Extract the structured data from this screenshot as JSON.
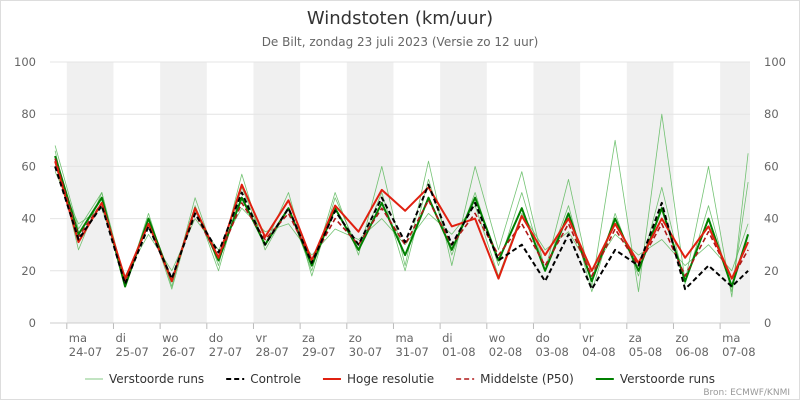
{
  "chart_data": {
    "type": "line",
    "title": "Windstoten (km/uur)",
    "subtitle": "De Bilt, zondag 23 juli 2023 (Versie zo 12 uur)",
    "source": "Bron: ECMWF/KNMI",
    "x": [
      -0.25,
      0.25,
      0.75,
      1.25,
      1.75,
      2.25,
      2.75,
      3.25,
      3.75,
      4.25,
      4.75,
      5.25,
      5.75,
      6.25,
      6.75,
      7.25,
      7.75,
      8.25,
      8.75,
      9.25,
      9.75,
      10.25,
      10.75,
      11.25,
      11.75,
      12.25,
      12.75,
      13.25,
      13.75,
      14.25,
      14.6
    ],
    "xlim": [
      -0.36,
      14.64
    ],
    "xticks": [
      {
        "value": 0,
        "label": "ma",
        "date": "24-07"
      },
      {
        "value": 1,
        "label": "di",
        "date": "25-07"
      },
      {
        "value": 2,
        "label": "wo",
        "date": "26-07"
      },
      {
        "value": 3,
        "label": "do",
        "date": "27-07"
      },
      {
        "value": 4,
        "label": "vr",
        "date": "28-07"
      },
      {
        "value": 5,
        "label": "za",
        "date": "29-07"
      },
      {
        "value": 6,
        "label": "zo",
        "date": "30-07"
      },
      {
        "value": 7,
        "label": "ma",
        "date": "31-07"
      },
      {
        "value": 8,
        "label": "di",
        "date": "01-08"
      },
      {
        "value": 9,
        "label": "wo",
        "date": "02-08"
      },
      {
        "value": 10,
        "label": "do",
        "date": "03-08"
      },
      {
        "value": 11,
        "label": "vr",
        "date": "04-08"
      },
      {
        "value": 12,
        "label": "za",
        "date": "05-08"
      },
      {
        "value": 13,
        "label": "zo",
        "date": "06-08"
      },
      {
        "value": 14,
        "label": "ma",
        "date": "07-08"
      }
    ],
    "ylim": [
      0,
      100
    ],
    "yticks": [
      0,
      20,
      40,
      60,
      80,
      100
    ],
    "grid": true,
    "legend": "bottom",
    "series": [
      {
        "name": "Verstoorde runs",
        "color": "#5cb85c",
        "width": 0.8,
        "runs": [
          [
            68,
            36,
            50,
            14,
            42,
            14,
            48,
            22,
            57,
            28,
            44,
            20,
            50,
            26,
            60,
            22,
            62,
            22,
            60,
            28,
            58,
            20,
            55,
            14,
            70,
            12,
            80,
            16,
            60,
            10,
            65
          ],
          [
            58,
            38,
            44,
            18,
            34,
            20,
            40,
            28,
            44,
            35,
            38,
            26,
            36,
            32,
            40,
            30,
            42,
            34,
            45,
            18,
            42,
            28,
            35,
            20,
            34,
            26,
            32,
            22,
            30,
            20,
            38
          ],
          [
            66,
            28,
            50,
            16,
            40,
            13,
            45,
            20,
            52,
            30,
            50,
            18,
            48,
            28,
            50,
            20,
            55,
            26,
            50,
            22,
            50,
            20,
            45,
            12,
            42,
            18,
            52,
            15,
            45,
            12,
            54
          ]
        ]
      },
      {
        "name": "Controle",
        "color": "#000000",
        "width": 2,
        "dash": true,
        "values": [
          60,
          32,
          45,
          15,
          37,
          17,
          42,
          27,
          50,
          30,
          44,
          23,
          43,
          30,
          48,
          31,
          53,
          30,
          46,
          24,
          30,
          16,
          34,
          13,
          28,
          22,
          46,
          13,
          22,
          14,
          20
        ]
      },
      {
        "name": "Hoge resolutie",
        "color": "#e02010",
        "width": 2,
        "values": [
          62,
          31,
          46,
          17,
          38,
          16,
          44,
          25,
          53,
          33,
          47,
          24,
          45,
          35,
          51,
          43,
          52,
          37,
          40,
          17,
          41,
          26,
          40,
          20,
          38,
          23,
          40,
          25,
          37,
          17,
          31
        ]
      },
      {
        "name": "Middelste (P50)",
        "color": "#b01818",
        "width": 1.6,
        "dash": true,
        "values": [
          63,
          33,
          46,
          16,
          38,
          17,
          42,
          25,
          46,
          32,
          42,
          24,
          40,
          30,
          44,
          30,
          47,
          30,
          42,
          26,
          38,
          22,
          38,
          18,
          36,
          22,
          38,
          18,
          35,
          17,
          28
        ]
      },
      {
        "name": "Verstoorde runs",
        "color": "#008000",
        "width": 2,
        "values": [
          64,
          34,
          48,
          14,
          40,
          16,
          44,
          24,
          48,
          30,
          44,
          22,
          44,
          28,
          46,
          26,
          48,
          28,
          48,
          24,
          44,
          20,
          42,
          16,
          40,
          20,
          44,
          16,
          40,
          14,
          34
        ]
      }
    ]
  }
}
